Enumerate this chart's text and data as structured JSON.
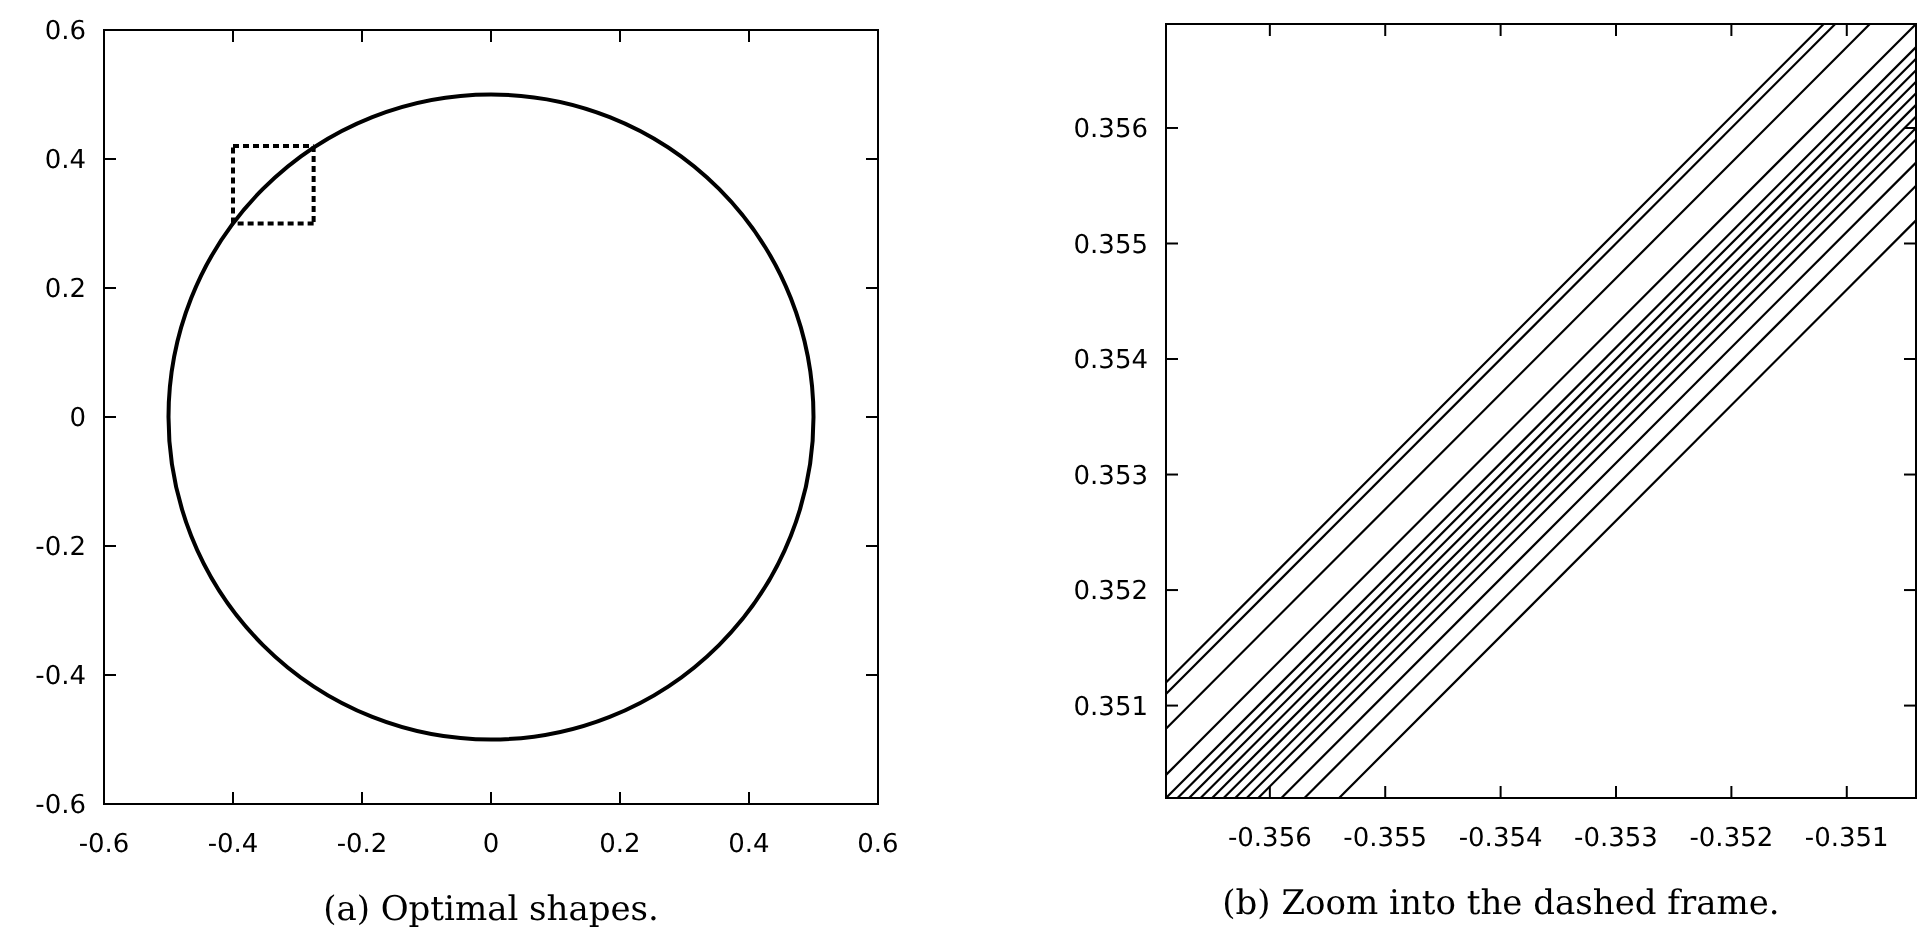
{
  "chart_data": [
    {
      "type": "line",
      "xlabel": "(a) Optimal shapes.",
      "xlim": [
        -0.6,
        0.6
      ],
      "ylim": [
        -0.6,
        0.6
      ],
      "xticks": [
        -0.6,
        -0.4,
        -0.2,
        0,
        0.2,
        0.4,
        0.6
      ],
      "yticks": [
        -0.6,
        -0.4,
        -0.2,
        0,
        0.2,
        0.4,
        0.6
      ],
      "grid": false,
      "series": [
        {
          "color": "#000000",
          "line_style": "dashed",
          "x": [
            -0.4,
            -0.4
          ],
          "values": [
            0.3,
            0.42
          ]
        },
        {
          "color": "#000000",
          "line_style": "dashed",
          "x": [
            -0.4,
            -0.275
          ],
          "values": [
            0.42,
            0.42
          ]
        },
        {
          "color": "#000000",
          "line_style": "dashed",
          "x": [
            -0.275,
            -0.275
          ],
          "values": [
            0.42,
            0.3
          ]
        },
        {
          "color": "#000000",
          "line_style": "dashed",
          "x": [
            -0.275,
            -0.4
          ],
          "values": [
            0.3,
            0.3
          ]
        }
      ]
    },
    {
      "type": "line",
      "xlabel": "(b) Zoom into the dashed frame.",
      "xlim": [
        -0.3569,
        -0.3504
      ],
      "ylim": [
        0.3502,
        0.3569
      ],
      "xticks": [
        -0.356,
        -0.355,
        -0.354,
        -0.353,
        -0.352,
        -0.351
      ],
      "yticks": [
        0.351,
        0.352,
        0.353,
        0.354,
        0.355,
        0.356
      ],
      "grid": false,
      "series": [
        {
          "color": "#000000",
          "line_style": "solid",
          "x": [
            -0.3569,
            -0.3512
          ],
          "values": [
            0.3512,
            0.3569
          ]
        },
        {
          "color": "#000000",
          "line_style": "solid",
          "x": [
            -0.3569,
            -0.3511
          ],
          "values": [
            0.3511,
            0.3569
          ]
        },
        {
          "color": "#000000",
          "line_style": "solid",
          "x": [
            -0.3569,
            -0.3508
          ],
          "values": [
            0.3508,
            0.3569
          ]
        },
        {
          "color": "#000000",
          "line_style": "solid",
          "x": [
            -0.3569,
            -0.3504
          ],
          "values": [
            0.3504,
            0.3569
          ]
        },
        {
          "color": "#000000",
          "line_style": "solid",
          "x": [
            -0.3569,
            -0.3504
          ],
          "values": [
            0.3502,
            0.3567
          ]
        },
        {
          "color": "#000000",
          "line_style": "solid",
          "x": [
            -0.3568,
            -0.3504
          ],
          "values": [
            0.3502,
            0.3566
          ]
        },
        {
          "color": "#000000",
          "line_style": "solid",
          "x": [
            -0.3567,
            -0.3504
          ],
          "values": [
            0.3502,
            0.3565
          ]
        },
        {
          "color": "#000000",
          "line_style": "solid",
          "x": [
            -0.3566,
            -0.3504
          ],
          "values": [
            0.3502,
            0.3564
          ]
        },
        {
          "color": "#000000",
          "line_style": "solid",
          "x": [
            -0.3565,
            -0.3504
          ],
          "values": [
            0.3502,
            0.3563
          ]
        },
        {
          "color": "#000000",
          "line_style": "solid",
          "x": [
            -0.3564,
            -0.3504
          ],
          "values": [
            0.3502,
            0.3562
          ]
        },
        {
          "color": "#000000",
          "line_style": "solid",
          "x": [
            -0.3563,
            -0.3504
          ],
          "values": [
            0.3502,
            0.3561
          ]
        },
        {
          "color": "#000000",
          "line_style": "solid",
          "x": [
            -0.3562,
            -0.3504
          ],
          "values": [
            0.3502,
            0.356
          ]
        },
        {
          "color": "#000000",
          "line_style": "solid",
          "x": [
            -0.3561,
            -0.3504
          ],
          "values": [
            0.3502,
            0.3559
          ]
        },
        {
          "color": "#000000",
          "line_style": "solid",
          "x": [
            -0.3559,
            -0.3504
          ],
          "values": [
            0.3502,
            0.3557
          ]
        },
        {
          "color": "#000000",
          "line_style": "solid",
          "x": [
            -0.3557,
            -0.3504
          ],
          "values": [
            0.3502,
            0.3555
          ]
        },
        {
          "color": "#000000",
          "line_style": "solid",
          "x": [
            -0.3554,
            -0.3504
          ],
          "values": [
            0.3502,
            0.3552
          ]
        }
      ]
    }
  ]
}
